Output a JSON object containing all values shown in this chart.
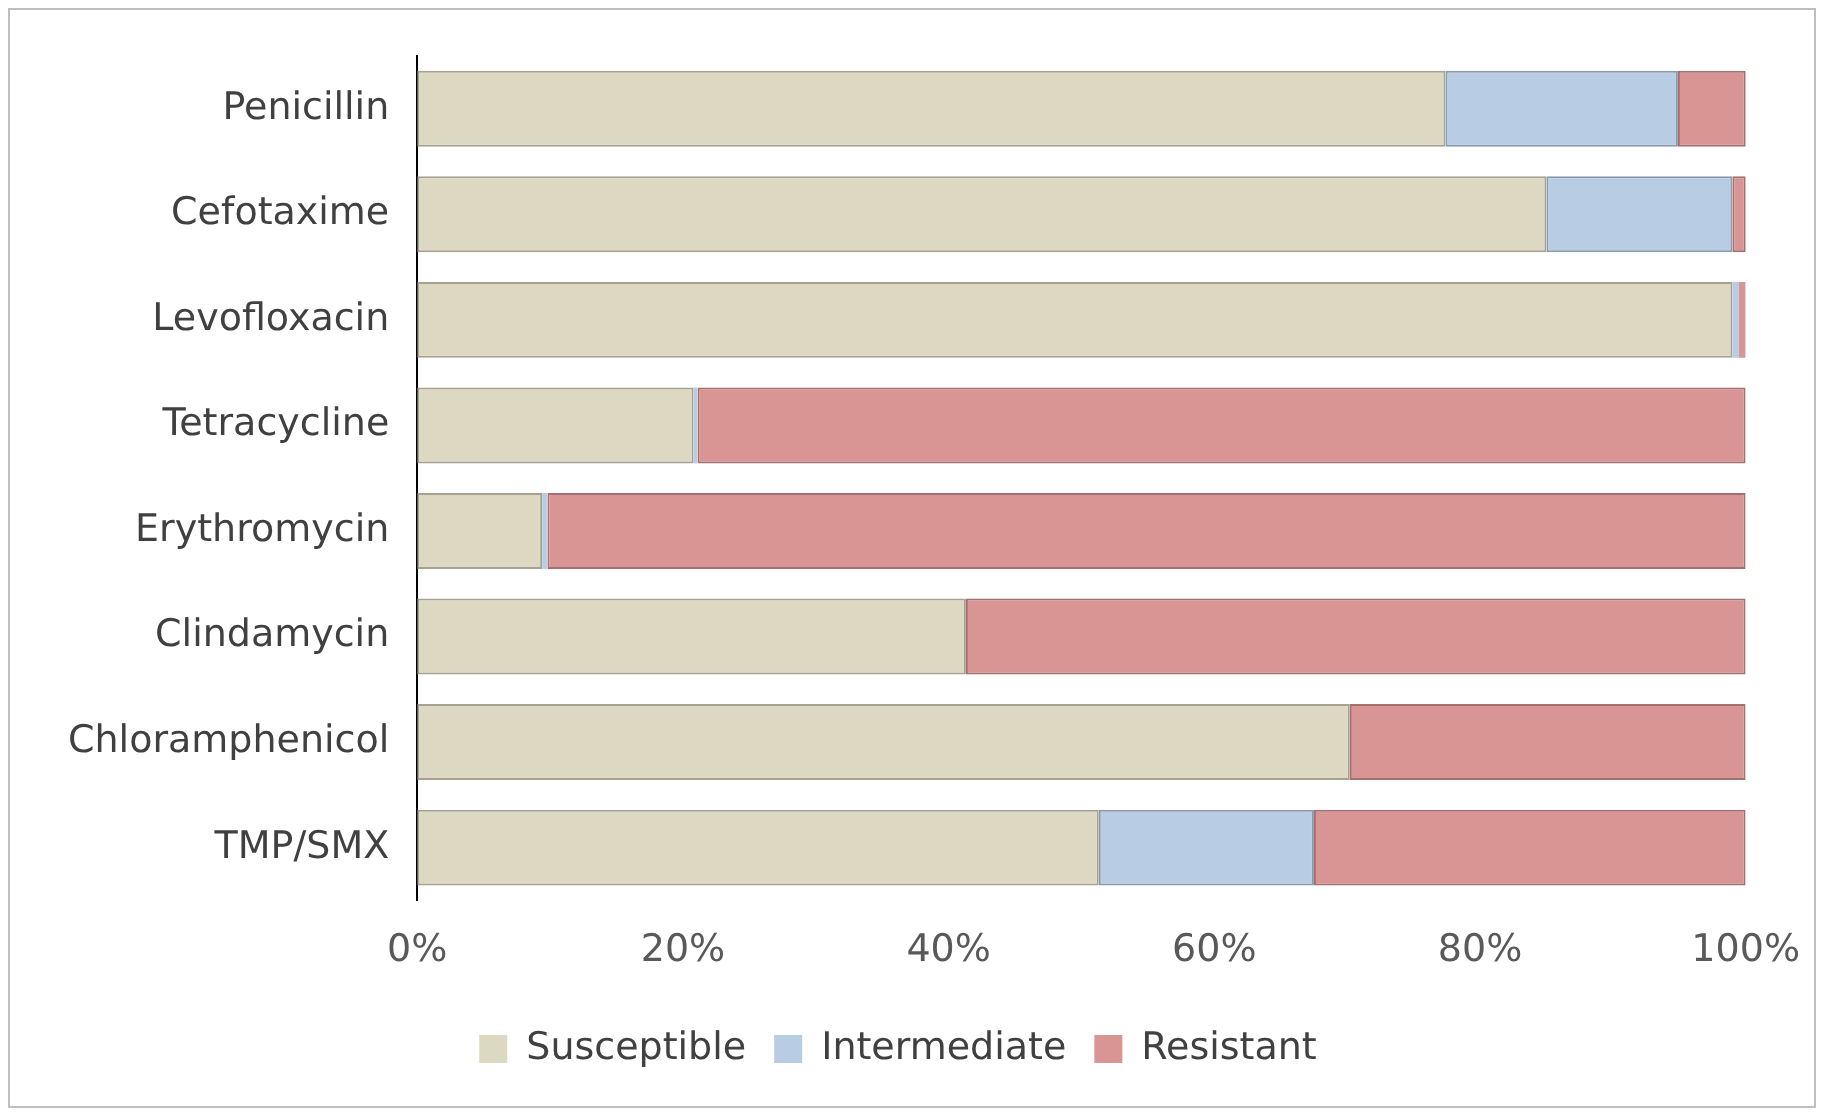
{
  "chart_data": {
    "type": "bar",
    "orientation": "horizontal",
    "stacked": true,
    "categories": [
      "Penicillin",
      "Cefotaxime",
      "Levofloxacin",
      "Tetracycline",
      "Erythromycin",
      "Clindamycin",
      "Chloramphenicol",
      "TMP/SMX"
    ],
    "series": [
      {
        "name": "Susceptible",
        "color": "#ddd8c2",
        "values": [
          77.4,
          85.0,
          99.0,
          20.8,
          9.4,
          41.3,
          70.2,
          51.3
        ]
      },
      {
        "name": "Intermediate",
        "color": "#b8cce4",
        "values": [
          17.5,
          14.0,
          0.5,
          0.3,
          0.4,
          0,
          0,
          16.2
        ]
      },
      {
        "name": "Resistant",
        "color": "#d99594",
        "values": [
          5.1,
          1.0,
          0.5,
          78.9,
          90.2,
          58.7,
          29.8,
          32.5
        ]
      }
    ],
    "xlim": [
      0,
      100
    ],
    "xticks": [
      {
        "value": 0,
        "label": "0%"
      },
      {
        "value": 20,
        "label": "20%"
      },
      {
        "value": 40,
        "label": "40%"
      },
      {
        "value": 60,
        "label": "60%"
      },
      {
        "value": 80,
        "label": "80%"
      },
      {
        "value": 100,
        "label": "100%"
      }
    ],
    "grid": false,
    "legend": "bottom"
  }
}
